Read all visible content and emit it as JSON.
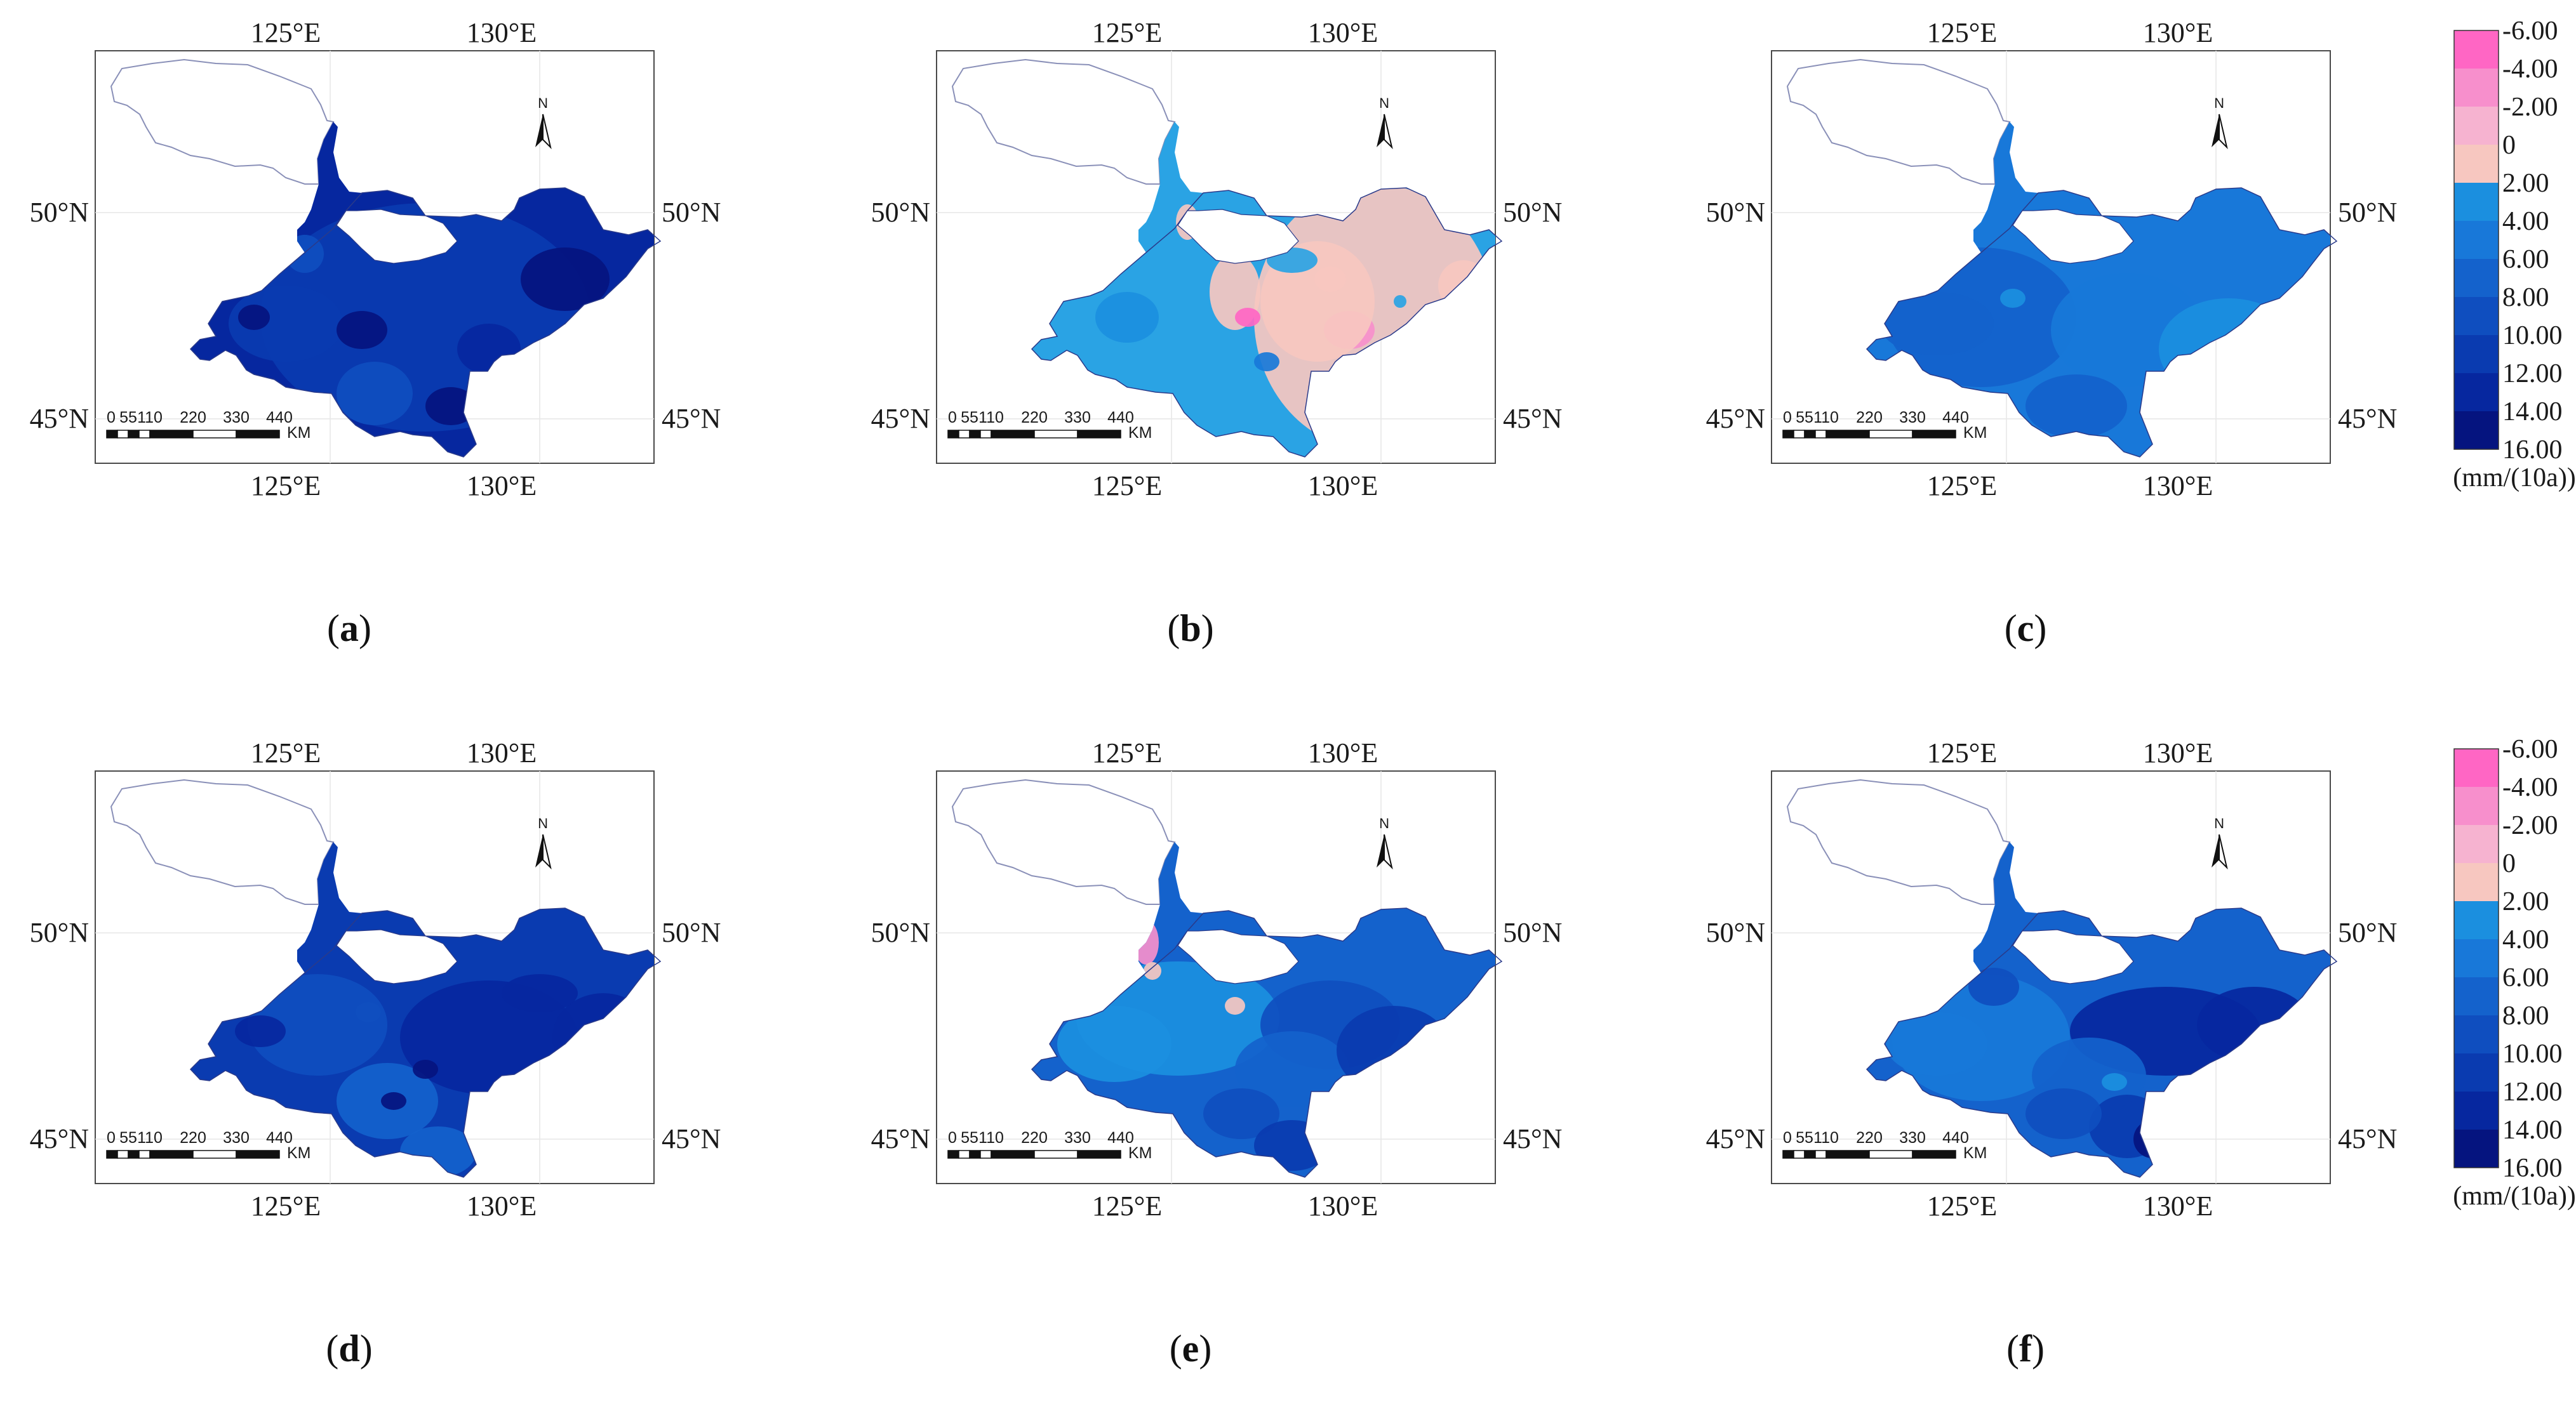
{
  "figure": {
    "panels": [
      {
        "id": "a",
        "caption_label": "a",
        "caption_open": "(",
        "caption_close": ")",
        "scheme": "dark"
      },
      {
        "id": "b",
        "caption_label": "b",
        "caption_open": "(",
        "caption_close": ")",
        "scheme": "mixed"
      },
      {
        "id": "c",
        "caption_label": "c",
        "caption_open": "(",
        "caption_close": ")",
        "scheme": "medium"
      },
      {
        "id": "d",
        "caption_label": "d",
        "caption_open": "(",
        "caption_close": ")",
        "scheme": "dark2"
      },
      {
        "id": "e",
        "caption_label": "e",
        "caption_open": "(",
        "caption_close": ")",
        "scheme": "medium2"
      },
      {
        "id": "f",
        "caption_label": "f",
        "caption_open": "(",
        "caption_close": ")",
        "scheme": "medium3"
      }
    ],
    "lon_labels": [
      "125°E",
      "130°E"
    ],
    "lat_labels": [
      "50°N",
      "45°N"
    ],
    "scale_bar": {
      "ticks": [
        "0",
        "55",
        "110",
        "220",
        "330",
        "440"
      ],
      "unit": "KM"
    },
    "north_arrow": "N",
    "legend": {
      "labels": [
        "-6.00",
        "-4.00",
        "-2.00",
        "0",
        "2.00",
        "4.00",
        "6.00",
        "8.00",
        "10.00",
        "12.00",
        "14.00",
        "16.00"
      ],
      "unit": "(mm/(10a))",
      "colors": [
        "#ff66c4",
        "#f78fcc",
        "#f6b3d0",
        "#f7c7c0",
        "#2aa3e4",
        "#1b8fdf",
        "#1878d9",
        "#1462cc",
        "#0f4ebf",
        "#0a3bb0",
        "#06279f",
        "#05147f"
      ]
    }
  }
}
